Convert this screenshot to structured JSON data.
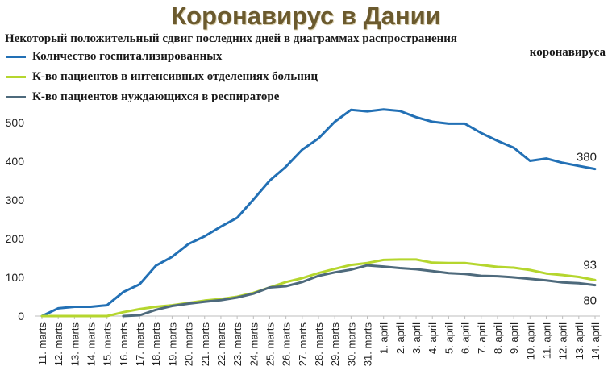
{
  "chart_data": {
    "type": "line",
    "title": "Коронавирус в Дании",
    "subtitle": "Некоторый положительный сдвиг последних дней в диаграммах распространения",
    "subtitle_end": "коронавируса",
    "xlabel": "",
    "ylabel": "",
    "ylim": [
      0,
      550
    ],
    "yticks": [
      0,
      100,
      200,
      300,
      400,
      500
    ],
    "grid": false,
    "legend_position": "top-left",
    "categories": [
      "11. marts",
      "12. marts",
      "13. marts",
      "14. marts",
      "15. marts",
      "16. marts",
      "17. marts",
      "18. marts",
      "19. marts",
      "20. marts",
      "21. marts",
      "22. marts",
      "23. marts",
      "24. marts",
      "25. marts",
      "26. marts",
      "27. marts",
      "28. marts",
      "29. marts",
      "30. marts",
      "31. marts",
      "1. april",
      "2. april",
      "3. april",
      "4. april",
      "5. april",
      "6. april",
      "7. april",
      "8. april",
      "9. april",
      "10. april",
      "11. april",
      "12. april",
      "13. april",
      "14. april"
    ],
    "series": [
      {
        "name": "Количество госпитализированных",
        "color": "#2270b5",
        "end_label": "380",
        "values": [
          0,
          20,
          24,
          24,
          28,
          62,
          82,
          130,
          153,
          186,
          206,
          231,
          254,
          301,
          350,
          386,
          430,
          459,
          502,
          533,
          529,
          534,
          530,
          514,
          502,
          497,
          497,
          473,
          453,
          435,
          401,
          407,
          396,
          388,
          380
        ]
      },
      {
        "name": "К-во пациентов в интенсивных отделениях больниц",
        "color": "#b5d62e",
        "end_label": "93",
        "values": [
          0,
          0,
          0,
          0,
          0,
          10,
          18,
          24,
          28,
          34,
          40,
          44,
          50,
          60,
          74,
          88,
          98,
          111,
          122,
          132,
          137,
          145,
          146,
          146,
          138,
          137,
          137,
          132,
          127,
          125,
          119,
          110,
          106,
          101,
          93
        ]
      },
      {
        "name": "К-во пациентов нуждающихся в респираторе",
        "color": "#4e6a7c",
        "end_label": "80",
        "values": [
          null,
          null,
          null,
          null,
          null,
          0,
          2,
          16,
          26,
          32,
          37,
          41,
          48,
          58,
          74,
          77,
          88,
          104,
          113,
          120,
          131,
          128,
          124,
          121,
          116,
          111,
          109,
          104,
          103,
          100,
          96,
          92,
          87,
          85,
          80
        ]
      }
    ]
  }
}
